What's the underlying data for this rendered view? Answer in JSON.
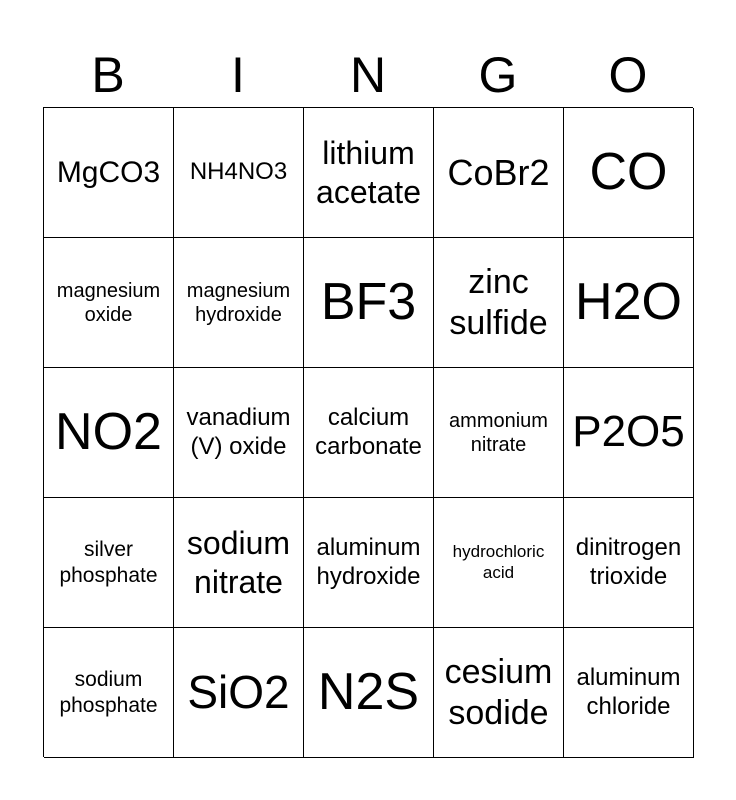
{
  "header": [
    "B",
    "I",
    "N",
    "G",
    "O"
  ],
  "cells": [
    "MgCO3",
    "NH4NO3",
    "lithium acetate",
    "CoBr2",
    "CO",
    "magnesium oxide",
    "magnesium hydroxide",
    "BF3",
    "zinc sulfide",
    "H2O",
    "NO2",
    "vanadium (V) oxide",
    "calcium carbonate",
    "ammonium nitrate",
    "P2O5",
    "silver phosphate",
    "sodium nitrate",
    "aluminum hydroxide",
    "hydrochloric acid",
    "dinitrogen trioxide",
    "sodium phosphate",
    "SiO2",
    "N2S",
    "cesium sodide",
    "aluminum chloride"
  ]
}
